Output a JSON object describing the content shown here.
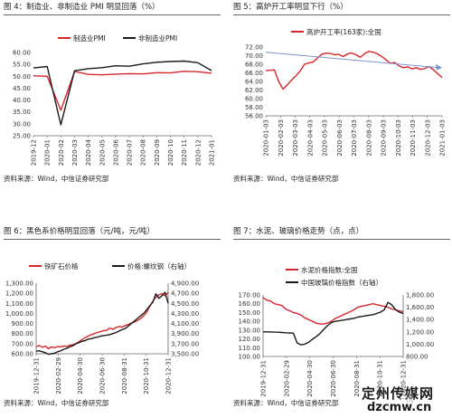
{
  "colors": {
    "red": "#d7262b",
    "black": "#1a1a1a",
    "blue": "#7a95cc",
    "grid": "#c8c8c8"
  },
  "watermark": {
    "line1": "定州传媒网",
    "line2": "dzcmw.cn",
    "logo": "一淘"
  },
  "chart_data": [
    {
      "type": "line",
      "title": "图 4：制造业、非制造业 PMI 明显回落（%）",
      "source": "资料来源：Wind，中信证券研究部",
      "x": [
        "2019-12",
        "2020-01",
        "2020-02",
        "2020-03",
        "2020-04",
        "2020-05",
        "2020-06",
        "2020-07",
        "2020-08",
        "2020-09",
        "2020-10",
        "2020-11",
        "2020-12",
        "2021-01"
      ],
      "y_ticks": [
        "25.00",
        "30.00",
        "35.00",
        "40.00",
        "45.00",
        "50.00",
        "55.00",
        "60.00"
      ],
      "ylim": [
        25,
        60
      ],
      "legend_position": "top",
      "series": [
        {
          "name": "制造业PMI",
          "color": "#d7262b",
          "values": [
            50.2,
            50.0,
            35.7,
            52.0,
            50.8,
            50.6,
            50.9,
            51.1,
            51.0,
            51.5,
            51.4,
            52.1,
            51.9,
            51.3
          ]
        },
        {
          "name": "非制造业PMI",
          "color": "#1a1a1a",
          "values": [
            53.5,
            54.1,
            29.6,
            52.3,
            53.2,
            53.6,
            54.4,
            54.2,
            55.2,
            55.9,
            56.2,
            56.4,
            55.7,
            52.4
          ]
        }
      ]
    },
    {
      "type": "line",
      "title": "图 5：高炉开工率明显下行（%）",
      "source": "资料来源：Wind，中信证券研究部",
      "x_ticks": [
        "2020-01-03",
        "2020-02-03",
        "2020-03-03",
        "2020-04-03",
        "2020-05-03",
        "2020-06-03",
        "2020-07-03",
        "2020-08-03",
        "2020-09-03",
        "2020-10-03",
        "2020-11-03",
        "2020-12-03",
        "2021-01-03"
      ],
      "y_ticks": [
        "56.00",
        "58.00",
        "60.00",
        "62.00",
        "64.00",
        "66.00",
        "68.00",
        "70.00",
        "72.00"
      ],
      "ylim": [
        56,
        72
      ],
      "legend_position": "top",
      "series": [
        {
          "name": "高炉开工率(163家):全国",
          "color": "#d7262b",
          "values": [
            66.5,
            66.6,
            66.7,
            64.0,
            62.2,
            63.2,
            64.3,
            65.3,
            66.4,
            68.0,
            68.3,
            68.5,
            69.4,
            70.3,
            70.6,
            70.5,
            70.2,
            70.3,
            69.8,
            70.4,
            70.6,
            70.2,
            69.6,
            70.5,
            71.0,
            70.8,
            70.4,
            69.8,
            69.0,
            68.2,
            68.4,
            67.6,
            67.2,
            67.4,
            66.9,
            67.2,
            66.8,
            67.0,
            67.5,
            66.7,
            65.8,
            64.9
          ]
        }
      ],
      "trend_arrow": {
        "color": "#7a95cc",
        "from": [
          0.0,
          70.8
        ],
        "to": [
          1.0,
          67.2
        ]
      }
    },
    {
      "type": "line",
      "title": "图 6：黑色系价格明显回落（元/吨，元/吨）",
      "source": "资料来源：Wind，中信证券研究部",
      "x_ticks": [
        "2019-12-31",
        "2020-02-29",
        "2020-04-30",
        "2020-06-30",
        "2020-08-31",
        "2020-10-31",
        "2020-12-31"
      ],
      "y_ticks": [
        "600.00",
        "700.00",
        "800.00",
        "900.00",
        "1,000.00",
        "1,100.00",
        "1,200.00",
        "1,300.00"
      ],
      "y2_ticks": [
        "3,500.00",
        "3,700.00",
        "3,900.00",
        "4,100.00",
        "4,300.00",
        "4,500.00",
        "4,700.00",
        "4,900.00"
      ],
      "ylim": [
        600,
        1300
      ],
      "y2lim": [
        3500,
        4900
      ],
      "legend_position": "top",
      "series": [
        {
          "name": "铁矿石价格",
          "axis": "left",
          "color": "#d7262b",
          "values": [
            670,
            682,
            665,
            675,
            650,
            668,
            660,
            672,
            668,
            678,
            672,
            685,
            690,
            702,
            720,
            742,
            760,
            775,
            790,
            800,
            812,
            820,
            830,
            832,
            855,
            842,
            860,
            870,
            865,
            880,
            890,
            905,
            915,
            930,
            948,
            975,
            1010,
            1070,
            1120,
            1160,
            1185,
            1195,
            1175,
            1210
          ]
        },
        {
          "name": "价格:螺纹钢（右轴）",
          "axis": "right",
          "color": "#1a1a1a",
          "values": [
            3550,
            3560,
            3540,
            3520,
            3490,
            3500,
            3510,
            3540,
            3560,
            3590,
            3610,
            3640,
            3660,
            3700,
            3720,
            3750,
            3760,
            3790,
            3800,
            3820,
            3830,
            3850,
            3860,
            3870,
            3880,
            3900,
            3920,
            3950,
            3980,
            4000,
            4050,
            4100,
            4150,
            4200,
            4250,
            4300,
            4370,
            4450,
            4520,
            4690,
            4600,
            4650,
            4720,
            4500
          ]
        }
      ]
    },
    {
      "type": "line",
      "title": "图 7：水泥、玻璃价格走势（点，点）",
      "source": "资料来源：Wind，中信证券研究部",
      "x_ticks": [
        "2019-12-31",
        "2020-02-29",
        "2020-04-30",
        "2020-06-30",
        "2020-08-31",
        "2020-10-31",
        "2020-12-31"
      ],
      "y_ticks": [
        "100.00",
        "110.00",
        "120.00",
        "130.00",
        "140.00",
        "150.00",
        "160.00",
        "170.00"
      ],
      "y2_ticks": [
        "800.00",
        "1,000.00",
        "1,200.00",
        "1,400.00",
        "1,600.00",
        "1,800.00"
      ],
      "ylim": [
        100,
        170
      ],
      "y2lim": [
        800,
        1800
      ],
      "legend_position": "top",
      "series": [
        {
          "name": "水泥价格指数:全国",
          "axis": "left",
          "color": "#d7262b",
          "values": [
            167,
            164,
            163,
            160,
            159,
            158,
            154,
            152,
            150,
            149,
            147,
            144,
            142,
            140,
            138,
            137,
            137,
            138,
            140,
            143,
            145,
            147,
            149,
            151,
            153,
            156,
            157,
            158,
            159,
            160,
            159,
            158,
            157,
            156,
            154,
            153,
            152,
            151
          ]
        },
        {
          "name": "中国玻璃价格指数（右轴）",
          "axis": "right",
          "color": "#1a1a1a",
          "values": [
            1200,
            1200,
            1198,
            1196,
            1194,
            1190,
            1185,
            1183,
            1180,
            1020,
            990,
            1000,
            1030,
            1080,
            1120,
            1170,
            1240,
            1300,
            1350,
            1370,
            1380,
            1390,
            1400,
            1410,
            1420,
            1440,
            1450,
            1460,
            1470,
            1480,
            1500,
            1520,
            1560,
            1680,
            1640,
            1560,
            1520,
            1500
          ]
        }
      ]
    }
  ]
}
